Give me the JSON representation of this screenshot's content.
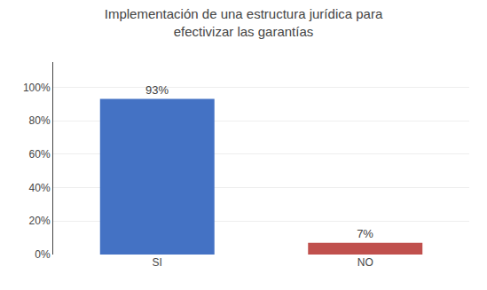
{
  "chart_data": {
    "type": "bar",
    "title": "Implementación de una estructura jurídica para\nefectivizar las garantías",
    "categories": [
      "SI",
      "NO"
    ],
    "values": [
      0.93,
      0.07
    ],
    "value_labels": [
      "93%",
      "7%"
    ],
    "data_labels": true,
    "colors": [
      "#4472C4",
      "#C0504D"
    ],
    "ylim": [
      0,
      1.15
    ],
    "yticks": [
      {
        "value": 0,
        "label": "0%"
      },
      {
        "value": 0.2,
        "label": "20%"
      },
      {
        "value": 0.4,
        "label": "40%"
      },
      {
        "value": 0.6,
        "label": "60%"
      },
      {
        "value": 0.8,
        "label": "80%"
      },
      {
        "value": 1.0,
        "label": "100%"
      }
    ],
    "grid": true
  }
}
